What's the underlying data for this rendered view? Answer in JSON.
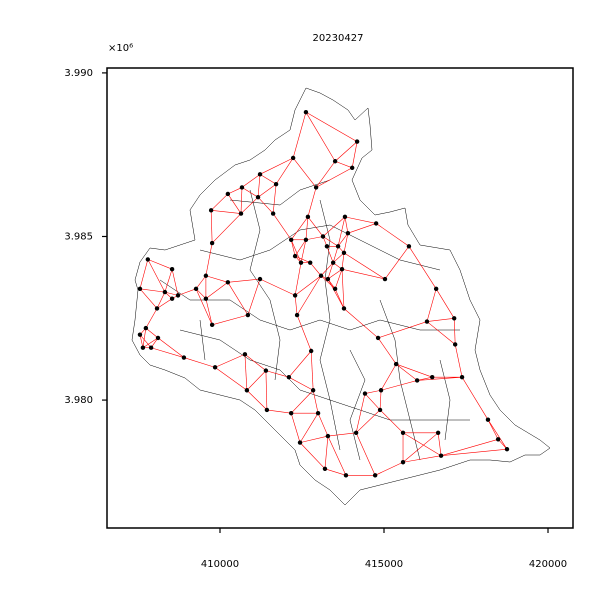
{
  "chart_data": {
    "type": "scatter",
    "title": "20230427",
    "offset_label": "×10⁶",
    "x": [
      412620,
      414180,
      412230,
      413510,
      414030,
      411220,
      412930,
      410670,
      410240,
      411710,
      411160,
      409730,
      410640,
      411620,
      412680,
      413810,
      414760,
      413900,
      412170,
      412620,
      413140,
      409760,
      407800,
      412290,
      413260,
      413600,
      413780,
      412750,
      412470,
      413450,
      413720,
      415760,
      408540,
      410240,
      411220,
      409570,
      413080,
      413290,
      415030,
      409270,
      408720,
      407560,
      408320,
      408540,
      412290,
      413510,
      416590,
      410850,
      408080,
      409570,
      413780,
      412350,
      409760,
      416310,
      417140,
      407740,
      407560,
      408110,
      408900,
      407900,
      407650,
      410760,
      412780,
      414820,
      417170,
      409850,
      411400,
      415370,
      412100,
      416010,
      416470,
      417380,
      410820,
      412840,
      414420,
      414910,
      414880,
      411430,
      412170,
      412990,
      418170,
      412440,
      413290,
      414150,
      415580,
      416650,
      418480,
      418750,
      413200,
      414730,
      415580,
      416740,
      413840
    ],
    "values": [
      3.9888,
      3.9879,
      3.9874,
      3.9873,
      3.9871,
      3.9869,
      3.9865,
      3.9865,
      3.9863,
      3.9866,
      3.9862,
      3.9858,
      3.9857,
      3.9857,
      3.9856,
      3.9856,
      3.9854,
      3.9851,
      3.9849,
      3.9849,
      3.985,
      3.9848,
      3.9843,
      3.9844,
      3.9847,
      3.9847,
      3.9845,
      3.9842,
      3.9842,
      3.9842,
      3.984,
      3.9847,
      3.984,
      3.9836,
      3.9837,
      3.9838,
      3.9838,
      3.9837,
      3.9837,
      3.9834,
      3.9832,
      3.9834,
      3.9833,
      3.9831,
      3.9832,
      3.9834,
      3.9834,
      3.9826,
      3.9828,
      3.9831,
      3.9828,
      3.9826,
      3.9823,
      3.9824,
      3.9825,
      3.9822,
      3.982,
      3.9819,
      3.9813,
      3.9816,
      3.9816,
      3.9814,
      3.9815,
      3.9819,
      3.9817,
      3.981,
      3.9809,
      3.9811,
      3.9807,
      3.9806,
      3.9807,
      3.9807,
      3.9803,
      3.9803,
      3.9802,
      3.9803,
      3.9797,
      3.9797,
      3.9796,
      3.9796,
      3.9794,
      3.9787,
      3.9789,
      3.979,
      3.979,
      3.979,
      3.9788,
      3.9785,
      3.9779,
      3.9777,
      3.9781,
      3.9783,
      3.9777
    ],
    "color": "#000000",
    "edge_color": "#ff0000",
    "xlim": [
      406555,
      420762
    ],
    "xticks": [
      410000,
      415000,
      420000
    ],
    "ylim": [
      3.97609,
      3.99015
    ],
    "yticks": [
      {
        "value": 3.98,
        "label": "3.980"
      },
      {
        "value": 3.985,
        "label": "3.985"
      },
      {
        "value": 3.99,
        "label": "3.990"
      }
    ]
  }
}
